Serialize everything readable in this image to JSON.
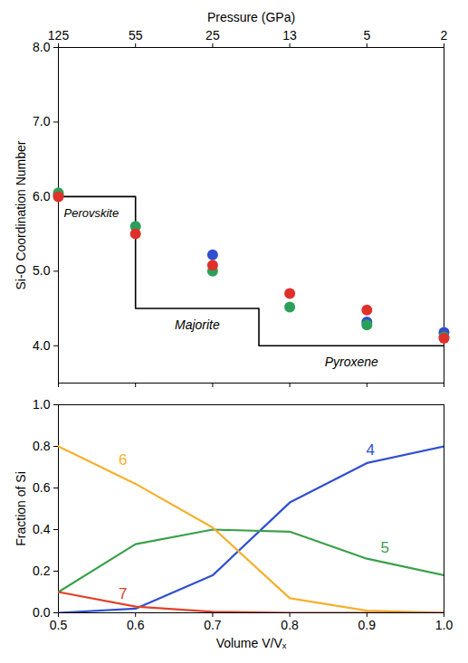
{
  "chart_data": [
    {
      "type": "scatter",
      "x": [
        0.5,
        0.6,
        0.7,
        0.8,
        0.9,
        1.0
      ],
      "xlim": [
        0.5,
        1.0
      ],
      "xticks": [
        0.5,
        0.6,
        0.7,
        0.8,
        0.9,
        1.0
      ],
      "x2label": "Pressure (GPa)",
      "x2ticks": [
        {
          "value": 0.5,
          "label": "125"
        },
        {
          "value": 0.6,
          "label": "55"
        },
        {
          "value": 0.7,
          "label": "25"
        },
        {
          "value": 0.8,
          "label": "13"
        },
        {
          "value": 0.9,
          "label": "5"
        },
        {
          "value": 1.0,
          "label": "2"
        }
      ],
      "ylabel": "Si-O Coordination Number",
      "ylim": [
        3.5,
        8
      ],
      "yticks": [
        4,
        5,
        6,
        7,
        8
      ],
      "tick_labels": "y",
      "marker": "circle",
      "series": [
        {
          "color": "#2f4fd0",
          "values": [
            6.02,
            null,
            5.22,
            null,
            4.32,
            4.18
          ]
        },
        {
          "color": "#2ca05a",
          "values": [
            6.05,
            5.6,
            5.0,
            4.52,
            4.28,
            4.12
          ]
        },
        {
          "color": "#e0302a",
          "values": [
            6.0,
            5.5,
            5.08,
            4.7,
            4.48,
            4.1
          ]
        }
      ],
      "steps": [
        {
          "label": "Perovskite",
          "value": 6,
          "from": 0.5,
          "to": 0.6
        },
        {
          "label": "Majorite",
          "value": 4.5,
          "from": 0.6,
          "to": 0.76
        },
        {
          "label": "Pyroxene",
          "value": 4,
          "from": 0.76,
          "to": 1.0
        }
      ]
    },
    {
      "type": "line",
      "x": [
        0.5,
        0.6,
        0.7,
        0.8,
        0.9,
        1.0
      ],
      "xlabel": "Volume V/Vₓ",
      "xlim": [
        0.5,
        1.0
      ],
      "xticks": [
        {
          "value": 0.5,
          "label": "0.5"
        },
        {
          "value": 0.6,
          "label": "0.6"
        },
        {
          "value": 0.7,
          "label": "0.7"
        },
        {
          "value": 0.8,
          "label": "0.8"
        },
        {
          "value": 0.9,
          "label": "0.9"
        },
        {
          "value": 1.0,
          "label": "1.0"
        }
      ],
      "ylabel": "Fraction of Si",
      "ylim": [
        0,
        1
      ],
      "yticks": [
        {
          "value": 0,
          "label": "0.0"
        },
        {
          "value": 0.2,
          "label": "0.2"
        },
        {
          "value": 0.4,
          "label": "0.4"
        },
        {
          "value": 0.6,
          "label": "0.6"
        },
        {
          "value": 0.8,
          "label": "0.8"
        },
        {
          "value": 1,
          "label": "1.0"
        }
      ],
      "legend": "inline",
      "series": [
        {
          "name": "4",
          "color": "#2f4fd0",
          "values": [
            0,
            0.02,
            0.18,
            0.53,
            0.72,
            0.8
          ]
        },
        {
          "name": "5",
          "color": "#3aa04a",
          "values": [
            0.1,
            0.33,
            0.4,
            0.39,
            0.26,
            0.18
          ]
        },
        {
          "name": "6",
          "color": "#f5b02e",
          "values": [
            0.8,
            0.62,
            0.41,
            0.07,
            0.01,
            0
          ]
        },
        {
          "name": "7",
          "color": "#e0402a",
          "values": [
            0.1,
            0.03,
            0.005,
            0,
            0,
            0
          ]
        }
      ]
    }
  ]
}
